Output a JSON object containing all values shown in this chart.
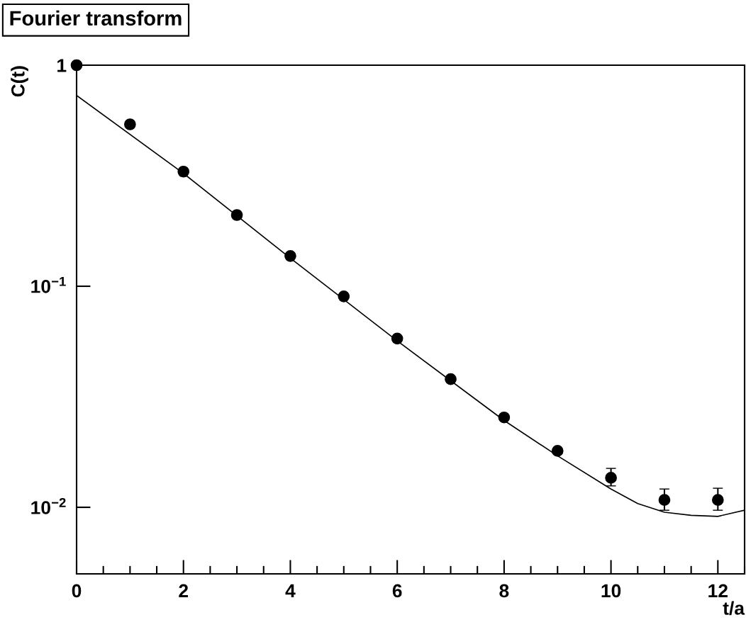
{
  "chart_data": {
    "type": "scatter",
    "title": "Fourier transform",
    "xlabel": "t/a",
    "ylabel": "C(t)",
    "log": "y",
    "grid": false,
    "marker": "circle",
    "xlim": [
      0,
      12.5
    ],
    "xticks": [
      0,
      2,
      4,
      6,
      8,
      10,
      12
    ],
    "ylim": [
      0.005,
      1
    ],
    "yticks": [
      {
        "value": 1,
        "label": "1"
      },
      {
        "value": 0.1,
        "label": "10$^{−1}$"
      },
      {
        "value": 0.01,
        "label": "10$^{−2}$"
      }
    ],
    "series": [
      {
        "type": "scatter",
        "color": "#000000",
        "x": [
          0,
          1,
          2,
          3,
          4,
          5,
          6,
          7,
          8,
          9,
          10,
          11,
          12
        ],
        "values": [
          1.0,
          0.54,
          0.33,
          0.21,
          0.137,
          0.09,
          0.058,
          0.038,
          0.0255,
          0.018,
          0.0136,
          0.0108,
          0.0108
        ],
        "errors": [
          null,
          null,
          null,
          null,
          null,
          null,
          null,
          null,
          null,
          null,
          [
            0.0125,
            0.015
          ],
          [
            0.0097,
            0.0121
          ],
          [
            0.0097,
            0.0122
          ]
        ]
      },
      {
        "type": "line",
        "color": "#000000",
        "marker": "none",
        "line_style": "solid",
        "x": [
          0,
          2,
          4,
          6,
          8,
          9,
          10,
          10.5,
          11,
          11.5,
          12,
          12.5
        ],
        "values": [
          0.73,
          0.324,
          0.134,
          0.0566,
          0.0247,
          0.0171,
          0.0121,
          0.0104,
          0.0095,
          0.0092,
          0.0091,
          0.0097
        ]
      }
    ]
  }
}
